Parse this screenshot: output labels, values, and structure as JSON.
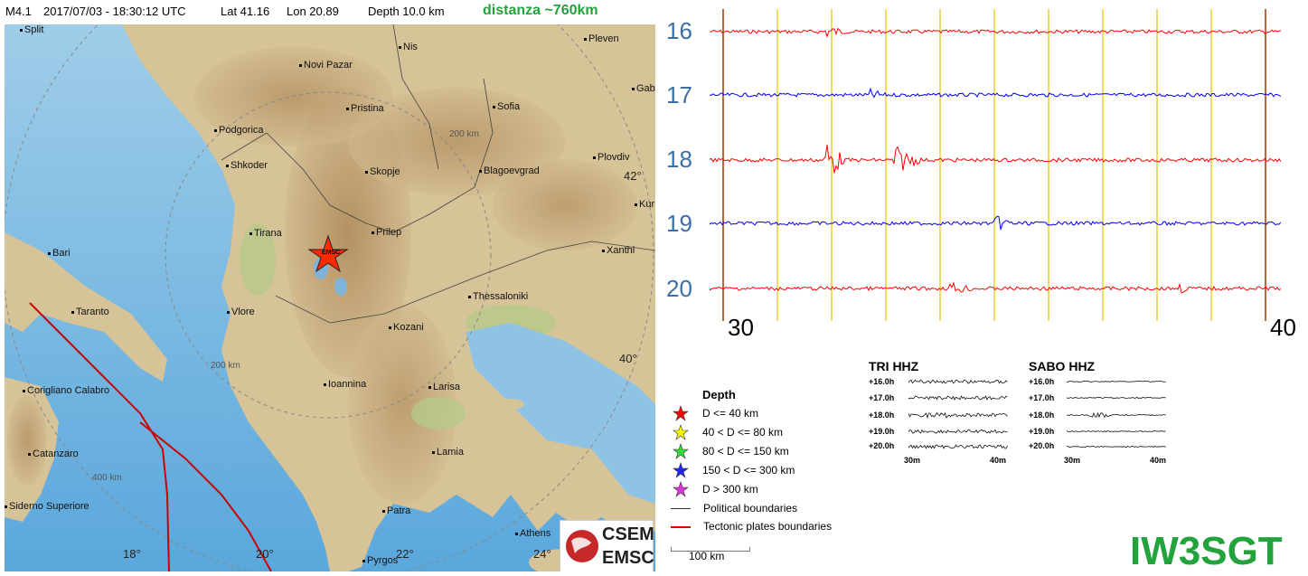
{
  "header": {
    "magnitude": "M4.1",
    "datetime": "2017/07/03 - 18:30:12 UTC",
    "lat": "Lat 41.16",
    "lon": "Lon 20.89",
    "depth": "Depth  10.0 km",
    "distance": "distanza ~760km"
  },
  "map": {
    "cities": [
      "Split",
      "Nis",
      "Pleven",
      "Novi Pazar",
      "Gab",
      "Pristina",
      "Sofia",
      "Podgorica",
      "Plovdiv",
      "Shkoder",
      "Skopje",
      "Blagoevgrad",
      "Kur",
      "Tirana",
      "Prilep",
      "Xanthi",
      "Bari",
      "Thessaloniki",
      "Taranto",
      "Vlore",
      "Kozani",
      "Corigliano Calabro",
      "Ioannina",
      "Larisa",
      "Catanzaro",
      "Lamia",
      "Siderno Superiore",
      "Patra",
      "Athens",
      "Pyrgos"
    ],
    "lat_labels": [
      "42°",
      "40°"
    ],
    "lon_labels": [
      "18°",
      "20°",
      "22°",
      "24°"
    ],
    "distance_rings": [
      "200 km",
      "200 km",
      "400 km"
    ],
    "epicenter_label": "EMSC",
    "logo": {
      "top": "CSEM",
      "bottom": "EMSC"
    }
  },
  "helicorder": {
    "hours": [
      "16",
      "17",
      "18",
      "19",
      "20"
    ],
    "minute_start": "30",
    "minute_end": "40",
    "trace_colors": [
      "#ff0000",
      "#0000ff",
      "#ff0000",
      "#0000ff",
      "#ff0000"
    ]
  },
  "stations": [
    {
      "name": "TRI HHZ",
      "rows": [
        "+16.0h",
        "+17.0h",
        "+18.0h",
        "+19.0h",
        "+20.0h"
      ],
      "xstart": "30m",
      "xend": "40m"
    },
    {
      "name": "SABO HHZ",
      "rows": [
        "+16.0h",
        "+17.0h",
        "+18.0h",
        "+19.0h",
        "+20.0h"
      ],
      "xstart": "30m",
      "xend": "40m"
    }
  ],
  "legend": {
    "title": "Depth",
    "items": [
      {
        "label": "D <= 40 km",
        "color": "#ff0000"
      },
      {
        "label": "40 < D <= 80 km",
        "color": "#ffff00"
      },
      {
        "label": "80 < D <= 150 km",
        "color": "#33dd33"
      },
      {
        "label": "150 < D <= 300 km",
        "color": "#2222ff"
      },
      {
        "label": "D > 300 km",
        "color": "#dd33dd"
      }
    ],
    "lines": [
      {
        "label": "Political boundaries",
        "color": "#333333"
      },
      {
        "label": "Tectonic plates boundaries",
        "color": "#dd0000"
      }
    ],
    "scale": "100 km"
  },
  "callsign": "IW3SGT"
}
